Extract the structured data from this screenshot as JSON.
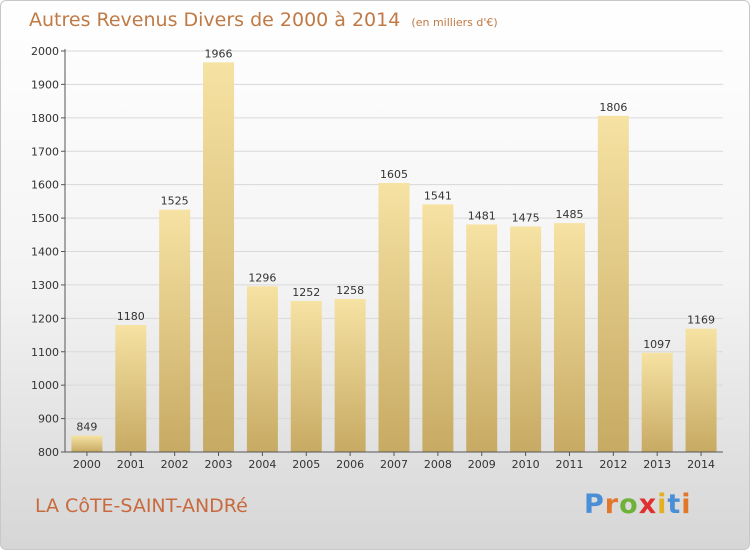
{
  "header": {
    "title": "Autres Revenus Divers de 2000 à 2014",
    "unit": "(en milliers d'€)"
  },
  "footer": {
    "place": "LA CôTE-SAINT-ANDRé",
    "logo": {
      "text": "Proxiti",
      "letter_colors": [
        "#4a8fd6",
        "#e2762b",
        "#6fb23a",
        "#e02f2f",
        "#e2b021",
        "#4a8fd6",
        "#e2762b"
      ]
    }
  },
  "colors": {
    "bar_light": "#f6e2a3",
    "bar_dark": "#c7aa63",
    "grid": "#d9d9d9",
    "title": "#c07a45"
  },
  "chart_data": {
    "type": "bar",
    "title": "Autres Revenus Divers de 2000 à 2014",
    "subtitle": "(en milliers d'€)",
    "xlabel": "",
    "ylabel": "",
    "categories": [
      "2000",
      "2001",
      "2002",
      "2003",
      "2004",
      "2005",
      "2006",
      "2007",
      "2008",
      "2009",
      "2010",
      "2011",
      "2012",
      "2013",
      "2014"
    ],
    "values": [
      849,
      1180,
      1525,
      1966,
      1296,
      1252,
      1258,
      1605,
      1541,
      1481,
      1475,
      1485,
      1806,
      1097,
      1169
    ],
    "ylim": [
      800,
      2000
    ],
    "yticks": [
      800,
      900,
      1000,
      1100,
      1200,
      1300,
      1400,
      1500,
      1600,
      1700,
      1800,
      1900,
      2000
    ],
    "grid": true,
    "legend": "none"
  }
}
